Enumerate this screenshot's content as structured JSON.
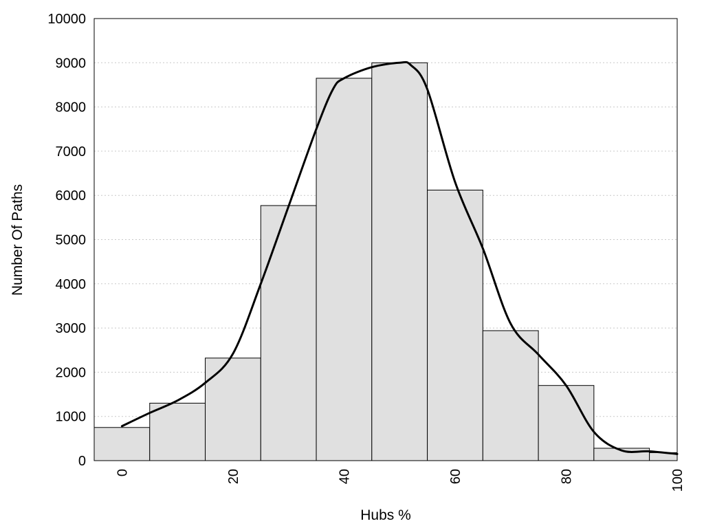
{
  "chart_data": {
    "type": "bar",
    "title": "",
    "xlabel": "Hubs %",
    "ylabel": "Number Of Paths",
    "xlim": [
      -5,
      100
    ],
    "ylim": [
      0,
      10000
    ],
    "x_ticks": [
      0,
      20,
      40,
      60,
      80,
      100
    ],
    "y_ticks": [
      0,
      1000,
      2000,
      3000,
      4000,
      5000,
      6000,
      7000,
      8000,
      9000,
      10000
    ],
    "grid": true,
    "bar_color": "#e0e0e0",
    "bar_width": 10,
    "x": [
      0,
      10,
      20,
      30,
      40,
      50,
      60,
      70,
      80,
      90,
      100
    ],
    "values": [
      750,
      1300,
      2320,
      5770,
      8650,
      9000,
      6120,
      2940,
      1700,
      280,
      180
    ],
    "curve": {
      "type": "line",
      "color": "#000000",
      "x": [
        0,
        5,
        10,
        15,
        20,
        25,
        30,
        35,
        38,
        40,
        45,
        50,
        52,
        55,
        60,
        65,
        70,
        75,
        80,
        85,
        90,
        95,
        100
      ],
      "y": [
        780,
        1080,
        1360,
        1760,
        2420,
        4000,
        5750,
        7500,
        8400,
        8650,
        8900,
        9000,
        8950,
        8400,
        6300,
        4800,
        3100,
        2400,
        1700,
        650,
        230,
        210,
        150
      ]
    }
  }
}
